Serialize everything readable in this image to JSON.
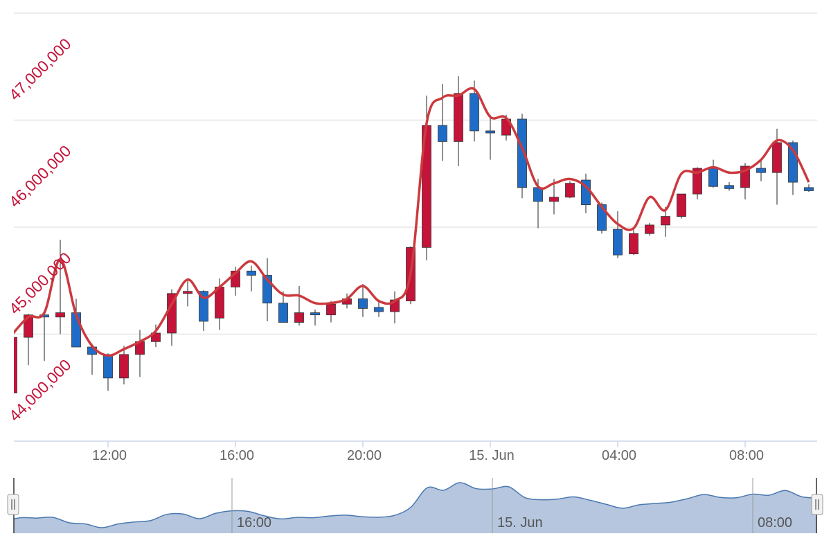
{
  "chart_data": {
    "type": "candlestick",
    "categories": [
      null,
      null,
      null,
      null,
      null,
      null,
      "12:00",
      null,
      null,
      null,
      null,
      null,
      null,
      null,
      "16:00",
      null,
      null,
      null,
      null,
      null,
      null,
      null,
      "20:00",
      null,
      null,
      null,
      null,
      null,
      null,
      null,
      "15. Jun",
      null,
      null,
      null,
      null,
      null,
      null,
      null,
      "04:00",
      null,
      null,
      null,
      null,
      null,
      null,
      null,
      "08:00",
      null,
      null,
      null,
      null
    ],
    "ylim": [
      43000000,
      47000000
    ],
    "yticks": [
      {
        "value": 44000000,
        "label": "44,000,000"
      },
      {
        "value": 45000000,
        "label": "45,000,000"
      },
      {
        "value": 46000000,
        "label": "46,000,000"
      },
      {
        "value": 47000000,
        "label": "47,000,000"
      }
    ],
    "grid": true,
    "series": [
      {
        "type": "candlestick",
        "up_color": "#c4143a",
        "down_color": "#1f6cc7",
        "open": [
          43450000,
          43970000,
          44180000,
          44160000,
          44200000,
          43880000,
          43810000,
          43590000,
          43810000,
          43930000,
          44010000,
          44380000,
          44400000,
          44150000,
          44440000,
          44590000,
          44550000,
          44290000,
          44110000,
          44200000,
          44180000,
          44280000,
          44330000,
          44250000,
          44210000,
          44310000,
          44810000,
          45950000,
          45800000,
          46250000,
          45900000,
          45860000,
          46010000,
          45370000,
          45240000,
          45280000,
          45440000,
          45210000,
          44980000,
          44750000,
          44940000,
          45020000,
          45100000,
          45310000,
          45550000,
          45390000,
          45370000,
          45550000,
          45510000,
          45790000,
          45370000
        ],
        "high": [
          44000000,
          44190000,
          44200000,
          44880000,
          44330000,
          43910000,
          43820000,
          43890000,
          44040000,
          44090000,
          44420000,
          44510000,
          44410000,
          44520000,
          44630000,
          44640000,
          44710000,
          44400000,
          44450000,
          44230000,
          44310000,
          44380000,
          44470000,
          44300000,
          44400000,
          44820000,
          46230000,
          46340000,
          46410000,
          46370000,
          46050000,
          46050000,
          46060000,
          45450000,
          45450000,
          45430000,
          45500000,
          45230000,
          45150000,
          44980000,
          45040000,
          45190000,
          45310000,
          45560000,
          45630000,
          45420000,
          45600000,
          45630000,
          45920000,
          45810000,
          45400000
        ],
        "low": [
          43420000,
          43710000,
          43750000,
          44000000,
          43880000,
          43620000,
          43470000,
          43530000,
          43600000,
          43880000,
          43890000,
          44260000,
          44030000,
          44040000,
          44360000,
          44400000,
          44120000,
          44110000,
          44080000,
          44080000,
          44110000,
          44240000,
          44160000,
          44160000,
          44100000,
          44280000,
          44690000,
          45620000,
          45570000,
          45800000,
          45630000,
          45810000,
          45270000,
          44990000,
          45120000,
          45270000,
          45130000,
          44940000,
          44710000,
          44740000,
          44920000,
          44910000,
          45080000,
          45260000,
          45370000,
          45340000,
          45260000,
          45430000,
          45210000,
          45300000,
          45330000
        ],
        "close": [
          43970000,
          44180000,
          44160000,
          44200000,
          43880000,
          43810000,
          43590000,
          43810000,
          43930000,
          44010000,
          44380000,
          44400000,
          44120000,
          44440000,
          44590000,
          44550000,
          44290000,
          44110000,
          44200000,
          44180000,
          44280000,
          44330000,
          44240000,
          44210000,
          44320000,
          44810000,
          45950000,
          45800000,
          46250000,
          45900000,
          45880000,
          46010000,
          45370000,
          45240000,
          45280000,
          45410000,
          45210000,
          44970000,
          44740000,
          44940000,
          45020000,
          45100000,
          45310000,
          45550000,
          45380000,
          45360000,
          45570000,
          45510000,
          45790000,
          45420000,
          45340000
        ]
      },
      {
        "type": "spline",
        "color": "#cc3a3e",
        "values": [
          44000000,
          44160000,
          44200000,
          44700000,
          44180000,
          43890000,
          43800000,
          43860000,
          43930000,
          44030000,
          44280000,
          44510000,
          44340000,
          44440000,
          44570000,
          44680000,
          44510000,
          44370000,
          44360000,
          44290000,
          44290000,
          44330000,
          44450000,
          44310000,
          44310000,
          44570000,
          45970000,
          46210000,
          46230000,
          46290000,
          46030000,
          46020000,
          45740000,
          45380000,
          45410000,
          45450000,
          45380000,
          45190000,
          45030000,
          44990000,
          45280000,
          45160000,
          45500000,
          45510000,
          45560000,
          45510000,
          45530000,
          45630000,
          45810000,
          45720000,
          45420000
        ]
      }
    ],
    "navigator": {
      "color": "#b6c6de",
      "line_color": "#4a78b0",
      "categories": [
        null,
        null,
        null,
        null,
        null,
        null,
        null,
        null,
        null,
        null,
        null,
        null,
        null,
        null,
        "16:00",
        null,
        null,
        null,
        null,
        null,
        null,
        null,
        null,
        null,
        null,
        null,
        null,
        null,
        null,
        null,
        "15. Jun",
        null,
        null,
        null,
        null,
        null,
        null,
        null,
        null,
        null,
        null,
        null,
        null,
        null,
        null,
        null,
        "08:00",
        null,
        null,
        null,
        null
      ]
    }
  }
}
